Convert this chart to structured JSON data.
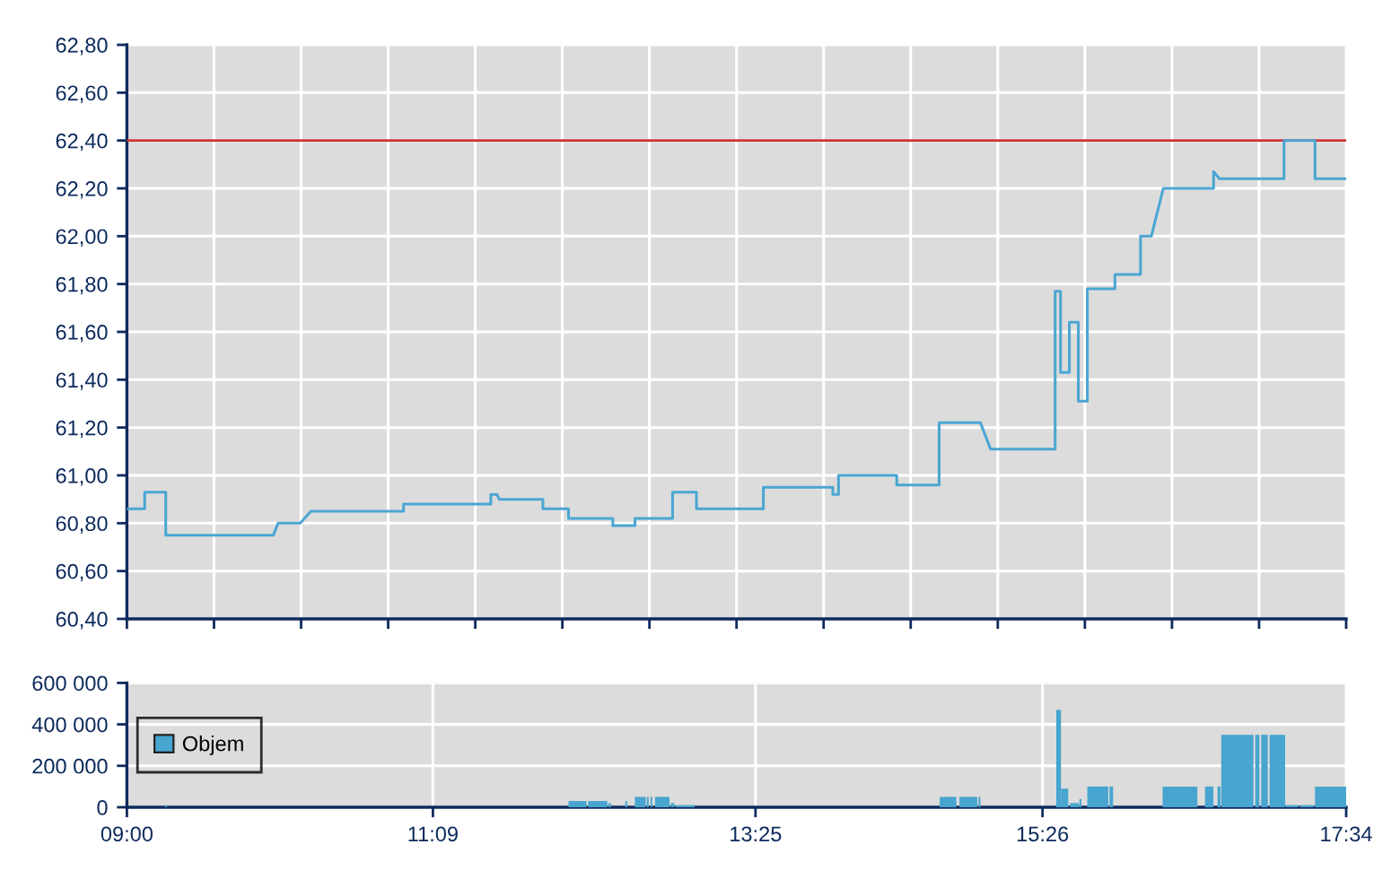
{
  "chart_data": [
    {
      "type": "line",
      "color": "#4ba6d2",
      "xlim": [
        9,
        17.5667
      ],
      "xticks": [
        {
          "value": 9,
          "label": null
        },
        {
          "value": 9.6119,
          "label": null
        },
        {
          "value": 10.2238,
          "label": null
        },
        {
          "value": 10.8357,
          "label": null
        },
        {
          "value": 11.4476,
          "label": null
        },
        {
          "value": 12.0595,
          "label": null
        },
        {
          "value": 12.6714,
          "label": null
        },
        {
          "value": 13.2833,
          "label": null
        },
        {
          "value": 13.8952,
          "label": null
        },
        {
          "value": 14.5071,
          "label": null
        },
        {
          "value": 15.119,
          "label": null
        },
        {
          "value": 15.731,
          "label": null
        },
        {
          "value": 16.3429,
          "label": null
        },
        {
          "value": 16.9548,
          "label": null
        },
        {
          "value": 17.5667,
          "label": null
        }
      ],
      "ylim": [
        60.4,
        62.8
      ],
      "yticks": [
        {
          "value": 60.4,
          "label": "60,40"
        },
        {
          "value": 60.6,
          "label": "60,60"
        },
        {
          "value": 60.8,
          "label": "60,80"
        },
        {
          "value": 61.0,
          "label": "61,00"
        },
        {
          "value": 61.2,
          "label": "61,20"
        },
        {
          "value": 61.4,
          "label": "61,40"
        },
        {
          "value": 61.6,
          "label": "61,60"
        },
        {
          "value": 61.8,
          "label": "61,80"
        },
        {
          "value": 62.0,
          "label": "62,00"
        },
        {
          "value": 62.2,
          "label": "62,20"
        },
        {
          "value": 62.4,
          "label": "62,40"
        },
        {
          "value": 62.6,
          "label": "62,60"
        },
        {
          "value": 62.8,
          "label": "62,80"
        }
      ],
      "tick_labels": "y",
      "grid": true,
      "ref_lines": [
        {
          "axis": "y",
          "value": 62.4,
          "color": "#cc3333"
        }
      ],
      "x": [
        9.0,
        9.125,
        9.125,
        9.273,
        9.273,
        10.029,
        10.062,
        10.218,
        10.293,
        10.944,
        10.944,
        11.557,
        11.557,
        11.6,
        11.617,
        11.923,
        11.923,
        12.103,
        12.103,
        12.414,
        12.414,
        12.57,
        12.57,
        12.834,
        12.834,
        13.002,
        13.002,
        13.472,
        13.472,
        13.96,
        13.96,
        14.0,
        14.0,
        14.409,
        14.409,
        14.707,
        14.707,
        14.997,
        15.068,
        15.522,
        15.522,
        15.56,
        15.56,
        15.622,
        15.622,
        15.685,
        15.685,
        15.748,
        15.748,
        15.942,
        15.942,
        16.122,
        16.122,
        16.198,
        16.282,
        16.635,
        16.635,
        16.676,
        17.13,
        17.13,
        17.348,
        17.348,
        17.5667
      ],
      "values": [
        60.86,
        60.86,
        60.93,
        60.93,
        60.75,
        60.75,
        60.8,
        60.8,
        60.85,
        60.85,
        60.88,
        60.88,
        60.92,
        60.92,
        60.9,
        60.9,
        60.86,
        60.86,
        60.82,
        60.82,
        60.79,
        60.79,
        60.82,
        60.82,
        60.93,
        60.93,
        60.86,
        60.86,
        60.95,
        60.95,
        60.92,
        60.92,
        61.0,
        61.0,
        60.96,
        60.96,
        61.22,
        61.22,
        61.11,
        61.11,
        61.77,
        61.77,
        61.43,
        61.43,
        61.64,
        61.64,
        61.31,
        61.31,
        61.78,
        61.78,
        61.84,
        61.84,
        62.0,
        62.0,
        62.2,
        62.2,
        62.27,
        62.24,
        62.24,
        62.4,
        62.4,
        62.24,
        62.24
      ]
    },
    {
      "type": "histogram",
      "xlim": [
        9,
        17.5667
      ],
      "xticks": [
        {
          "value": 9,
          "label": "09:00"
        },
        {
          "value": 11.15,
          "label": "11:09"
        },
        {
          "value": 13.4167,
          "label": "13:25"
        },
        {
          "value": 15.4333,
          "label": "15:26"
        },
        {
          "value": 17.5667,
          "label": "17:34"
        }
      ],
      "ylim": [
        0,
        600000
      ],
      "yticks": [
        0,
        {
          "value": 200000,
          "label": "200 000"
        },
        {
          "value": 400000,
          "label": "400 000"
        },
        {
          "value": 600000,
          "label": "600 000"
        }
      ],
      "grid": true,
      "legend": "left",
      "bins": [
        9.268,
        9.281,
        12.103,
        12.229,
        12.241,
        12.376,
        12.384,
        12.401,
        12.502,
        12.515,
        12.569,
        12.645,
        12.653,
        12.666,
        12.679,
        12.691,
        12.711,
        12.812,
        12.821,
        12.846,
        12.855,
        12.989,
        14.711,
        14.828,
        14.849,
        14.975,
        14.984,
        14.997,
        15.53,
        15.563,
        15.614,
        15.627,
        15.69,
        15.693,
        15.706,
        15.748,
        15.895,
        15.904,
        15.929,
        16.277,
        16.521,
        16.575,
        16.634,
        16.663,
        16.684,
        16.689,
        16.915,
        16.928,
        16.957,
        16.97,
        17.016,
        17.029,
        17.138,
        17.142,
        17.23,
        17.243,
        17.34,
        17.348,
        17.5667
      ],
      "series": [
        {
          "name": "Objem",
          "color": "#47a5cf",
          "values": [
            10000,
            null,
            30000,
            null,
            30000,
            null,
            20000,
            null,
            30000,
            null,
            50000,
            null,
            50000,
            null,
            50000,
            null,
            50000,
            null,
            20000,
            null,
            10000,
            null,
            50000,
            null,
            50000,
            null,
            50000,
            null,
            470000,
            90000,
            null,
            20000,
            null,
            40000,
            null,
            100000,
            null,
            100000,
            null,
            100000,
            null,
            100000,
            null,
            100000,
            null,
            350000,
            null,
            350000,
            null,
            350000,
            null,
            350000,
            null,
            10000,
            null,
            10000,
            null,
            100000
          ]
        }
      ]
    }
  ]
}
